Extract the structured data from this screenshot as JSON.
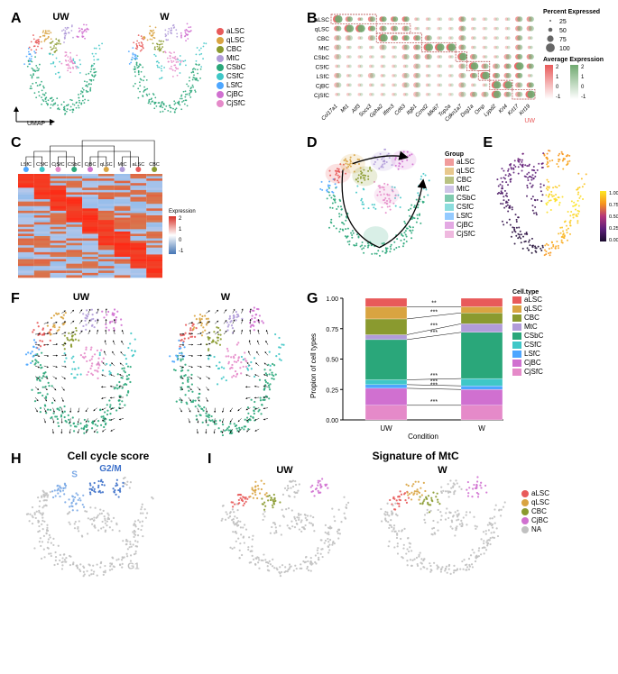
{
  "cell_types": {
    "aLSC": {
      "label": "aLSC",
      "color": "#e85a5a"
    },
    "qLSC": {
      "label": "qLSC",
      "color": "#d9a441"
    },
    "CBC": {
      "label": "CBC",
      "color": "#8a9a2f"
    },
    "MtC": {
      "label": "MtC",
      "color": "#b19cd9"
    },
    "CSbC": {
      "label": "CSbC",
      "color": "#2aa77a"
    },
    "CSfC": {
      "label": "CSfC",
      "color": "#3fc7c7"
    },
    "LSfC": {
      "label": "LSfC",
      "color": "#4da6ff"
    },
    "CjBC": {
      "label": "CjBC",
      "color": "#d070d0"
    },
    "CjSfC": {
      "label": "CjSfC",
      "color": "#e58ac9"
    }
  },
  "umap_axes": {
    "x": "UMAP_1",
    "y": "UMAP_2"
  },
  "panelA": {
    "title_left": "UW",
    "title_right": "W"
  },
  "panelB": {
    "genes": [
      "Col17a1",
      "Mt1",
      "Atf3",
      "Socs3",
      "Gpha2",
      "Ifitm3",
      "Cd63",
      "Itgb1",
      "Ccnd2",
      "Mki67",
      "Top2a",
      "Cdkn1a7",
      "Dsg1a",
      "Omp",
      "Lypd2",
      "Krt4",
      "Krt17",
      "Krt19"
    ],
    "rows": [
      "aLSC",
      "qLSC",
      "CBC",
      "MtC",
      "CSbC",
      "CSfC",
      "LSfC",
      "CjBC",
      "CjSfC"
    ],
    "legend_percent": {
      "title": "Percent Expressed",
      "vals": [
        25,
        50,
        75,
        100
      ]
    },
    "legend_avg": {
      "title": "Average Expression",
      "vals": [
        2,
        1,
        0,
        -1
      ]
    },
    "cond_colors": {
      "UW": "#e85a5a",
      "W": "#6fa96f"
    },
    "box_color": "#b04040",
    "grid": [
      [
        [
          3,
          1.8,
          2,
          1.2,
          1,
          1.0,
          2,
          1.3,
          2,
          1.6,
          2,
          1.4,
          2,
          1.5,
          1,
          0.4,
          1,
          0.3,
          1,
          0.2,
          1,
          0.2,
          2,
          1.1,
          1,
          0.3,
          1,
          0.2,
          1,
          0.2,
          1,
          0.3,
          2,
          1.0,
          2,
          1.0
        ],
        [
          3,
          1.9,
          2,
          1.4,
          1,
          0.8,
          2,
          1.2,
          2,
          1.6,
          2,
          1.5,
          2,
          1.4,
          1,
          0.3,
          1,
          0.3,
          1,
          0.2,
          1,
          0.2,
          2,
          1.0,
          1,
          0.3,
          1,
          0.2,
          1,
          0.2,
          1,
          0.3,
          2,
          1.0,
          2,
          1.0
        ]
      ],
      [
        [
          2,
          1.3,
          3,
          1.7,
          3,
          1.8,
          2,
          1.5,
          2,
          1.2,
          2,
          1.1,
          2,
          1.0,
          1,
          0.3,
          1,
          0.2,
          1,
          0.1,
          1,
          0.1,
          2,
          0.9,
          1,
          0.2,
          1,
          0.1,
          1,
          0.2,
          1,
          0.2,
          2,
          0.9,
          2,
          0.8
        ],
        [
          2,
          1.4,
          3,
          1.8,
          3,
          1.9,
          2,
          1.6,
          2,
          1.3,
          2,
          1.2,
          2,
          1.1,
          1,
          0.3,
          1,
          0.2,
          1,
          0.1,
          1,
          0.1,
          2,
          0.9,
          1,
          0.2,
          1,
          0.1,
          1,
          0.2,
          1,
          0.2,
          2,
          0.9,
          2,
          0.8
        ]
      ],
      [
        [
          2,
          0.6,
          2,
          0.5,
          1,
          0.3,
          2,
          0.7,
          3,
          1.8,
          2,
          1.5,
          2,
          1.4,
          2,
          1.3,
          2,
          1.0,
          1,
          0.2,
          1,
          0.2,
          2,
          0.8,
          1,
          0.3,
          1,
          0.2,
          1,
          0.2,
          1,
          0.3,
          2,
          1.0,
          1,
          0.4
        ],
        [
          2,
          0.6,
          2,
          0.5,
          1,
          0.3,
          2,
          0.7,
          3,
          1.9,
          2,
          1.6,
          2,
          1.5,
          2,
          1.3,
          2,
          1.0,
          1,
          0.2,
          1,
          0.2,
          2,
          0.8,
          1,
          0.3,
          1,
          0.2,
          1,
          0.2,
          1,
          0.3,
          2,
          1.0,
          1,
          0.4
        ]
      ],
      [
        [
          2,
          0.5,
          1,
          0.3,
          1,
          0.2,
          1,
          0.3,
          2,
          0.6,
          1,
          0.3,
          2,
          0.8,
          2,
          1.1,
          3,
          1.7,
          3,
          1.8,
          3,
          1.8,
          2,
          1.0,
          1,
          0.3,
          1,
          0.2,
          1,
          0.2,
          1,
          0.2,
          2,
          0.9,
          1,
          0.4
        ],
        [
          2,
          0.5,
          1,
          0.3,
          1,
          0.2,
          1,
          0.3,
          2,
          0.6,
          1,
          0.3,
          2,
          0.8,
          2,
          1.1,
          3,
          1.8,
          3,
          1.9,
          3,
          1.9,
          2,
          1.0,
          1,
          0.3,
          1,
          0.2,
          1,
          0.2,
          1,
          0.2,
          2,
          0.9,
          1,
          0.4
        ]
      ],
      [
        [
          2,
          0.4,
          1,
          0.2,
          1,
          0.2,
          1,
          0.2,
          1,
          0.3,
          1,
          0.2,
          2,
          0.6,
          2,
          0.8,
          2,
          0.9,
          1,
          0.3,
          1,
          0.3,
          3,
          1.8,
          2,
          1.0,
          1,
          0.3,
          1,
          0.3,
          2,
          0.8,
          2,
          1.3,
          2,
          1.1
        ],
        [
          2,
          0.4,
          1,
          0.2,
          1,
          0.2,
          1,
          0.2,
          1,
          0.3,
          1,
          0.2,
          2,
          0.6,
          2,
          0.8,
          2,
          0.9,
          1,
          0.3,
          1,
          0.3,
          3,
          1.9,
          2,
          1.0,
          1,
          0.3,
          1,
          0.3,
          2,
          0.8,
          2,
          1.3,
          2,
          1.1
        ]
      ],
      [
        [
          1,
          0.3,
          1,
          0.2,
          1,
          0.2,
          1,
          0.2,
          1,
          0.2,
          1,
          0.2,
          1,
          0.3,
          2,
          0.5,
          1,
          0.3,
          1,
          0.2,
          1,
          0.2,
          2,
          0.7,
          3,
          1.8,
          2,
          1.0,
          2,
          0.8,
          2,
          1.2,
          3,
          1.9,
          2,
          1.3
        ],
        [
          1,
          0.3,
          1,
          0.2,
          1,
          0.2,
          1,
          0.2,
          1,
          0.2,
          1,
          0.2,
          1,
          0.3,
          2,
          0.5,
          1,
          0.3,
          1,
          0.2,
          1,
          0.2,
          2,
          0.7,
          3,
          1.9,
          2,
          1.0,
          2,
          0.8,
          2,
          1.2,
          3,
          1.9,
          2,
          1.3
        ]
      ],
      [
        [
          2,
          0.6,
          1,
          0.3,
          1,
          0.2,
          2,
          0.5,
          1,
          0.3,
          1,
          0.2,
          2,
          0.5,
          2,
          0.6,
          1,
          0.3,
          1,
          0.2,
          1,
          0.2,
          2,
          0.6,
          2,
          1.3,
          3,
          1.8,
          2,
          1.3,
          2,
          1.0,
          2,
          1.4,
          1,
          0.4
        ],
        [
          2,
          0.6,
          1,
          0.3,
          1,
          0.2,
          2,
          0.5,
          1,
          0.3,
          1,
          0.2,
          2,
          0.5,
          2,
          0.6,
          1,
          0.3,
          1,
          0.2,
          1,
          0.2,
          2,
          0.6,
          2,
          1.3,
          3,
          1.9,
          2,
          1.3,
          2,
          1.0,
          2,
          1.4,
          1,
          0.4
        ]
      ],
      [
        [
          2,
          0.5,
          1,
          0.3,
          1,
          0.2,
          1,
          0.3,
          1,
          0.2,
          1,
          0.2,
          2,
          0.5,
          2,
          0.6,
          1,
          0.3,
          1,
          0.2,
          1,
          0.2,
          2,
          0.6,
          1,
          0.3,
          1,
          0.3,
          3,
          1.8,
          3,
          1.7,
          2,
          0.8,
          2,
          1.4
        ],
        [
          2,
          0.5,
          1,
          0.3,
          1,
          0.2,
          1,
          0.3,
          1,
          0.2,
          1,
          0.2,
          2,
          0.5,
          2,
          0.6,
          1,
          0.3,
          1,
          0.2,
          1,
          0.2,
          2,
          0.6,
          1,
          0.3,
          1,
          0.3,
          3,
          1.9,
          3,
          1.8,
          2,
          0.8,
          2,
          1.4
        ]
      ],
      [
        [
          1,
          0.3,
          1,
          0.2,
          1,
          0.2,
          1,
          0.2,
          1,
          0.2,
          1,
          0.2,
          1,
          0.3,
          2,
          0.4,
          1,
          0.2,
          1,
          0.1,
          1,
          0.1,
          2,
          0.5,
          2,
          0.9,
          2,
          0.7,
          3,
          1.7,
          2,
          1.0,
          2,
          0.8,
          3,
          1.8
        ],
        [
          1,
          0.3,
          1,
          0.2,
          1,
          0.2,
          1,
          0.2,
          1,
          0.2,
          1,
          0.2,
          1,
          0.3,
          2,
          0.4,
          1,
          0.2,
          1,
          0.1,
          1,
          0.1,
          2,
          0.5,
          2,
          0.9,
          2,
          0.7,
          3,
          1.8,
          2,
          1.0,
          2,
          0.8,
          3,
          1.9
        ]
      ]
    ]
  },
  "panelC": {
    "dendro_order": [
      "LSfC",
      "CSfC",
      "CjSfC",
      "CSbC",
      "CjBC",
      "qLSC",
      "MtC",
      "aLSC",
      "CBC"
    ],
    "expr_legend": {
      "title": "Expression",
      "max_color": "#d73027",
      "mid_color": "#ffffff",
      "min_color": "#4575b4",
      "vals": [
        2,
        1,
        0,
        -1
      ]
    }
  },
  "panelD": {
    "legend_title": "Group",
    "order": [
      "aLSC",
      "qLSC",
      "CBC",
      "MtC",
      "CSbC",
      "CSfC",
      "LSfC",
      "CjBC",
      "CjSfC"
    ]
  },
  "panelE": {
    "gradient_title": "",
    "vals": [
      1.0,
      0.75,
      0.5,
      0.25,
      0.0
    ],
    "colors": [
      "#fde725",
      "#f7941d",
      "#b5367a",
      "#5e1f7b",
      "#1a0b2e"
    ]
  },
  "panelF": {
    "title_left": "UW",
    "title_right": "W"
  },
  "panelG": {
    "y_label": "Propion of cell types",
    "x_label": "Condition",
    "legend_title": "Cell.type",
    "cats": [
      "UW",
      "W"
    ],
    "yticks": [
      0.0,
      0.25,
      0.5,
      0.75,
      1.0
    ],
    "stack": {
      "UW": {
        "aLSC": 0.07,
        "qLSC": 0.1,
        "CBC": 0.13,
        "MtC": 0.04,
        "CSbC": 0.33,
        "CSfC": 0.04,
        "LSfC": 0.03,
        "CjBC": 0.14,
        "CjSfC": 0.12
      },
      "W": {
        "aLSC": 0.07,
        "qLSC": 0.05,
        "CBC": 0.09,
        "MtC": 0.07,
        "CSbC": 0.38,
        "CSfC": 0.06,
        "LSfC": 0.03,
        "CjBC": 0.13,
        "CjSfC": 0.12
      }
    },
    "sig": [
      "**",
      "***",
      "***",
      "***",
      "***",
      "***",
      "***",
      "***"
    ]
  },
  "panelH": {
    "title": "Cell cycle score",
    "labels": {
      "S": "S",
      "G2M": "G2/M",
      "G1": "G1"
    },
    "colors": {
      "S": "#7aa8e6",
      "G2M": "#3b6fc9",
      "G1": "#c0c0c0"
    }
  },
  "panelI": {
    "title": "Signature of MtC",
    "title_left": "UW",
    "title_right": "W",
    "legend_order": [
      "aLSC",
      "qLSC",
      "CBC",
      "CjBC",
      "NA"
    ],
    "NA_color": "#c0c0c0"
  },
  "umap_pts": [
    [
      -3.5,
      6.5,
      "aLSC"
    ],
    [
      -3.3,
      6.7,
      "aLSC"
    ],
    [
      -3.7,
      6.3,
      "aLSC"
    ],
    [
      -3.1,
      6.9,
      "aLSC"
    ],
    [
      -3.6,
      6.1,
      "aLSC"
    ],
    [
      -3.4,
      7.0,
      "aLSC"
    ],
    [
      -3.2,
      6.4,
      "aLSC"
    ],
    [
      -3.8,
      6.6,
      "aLSC"
    ],
    [
      -2.3,
      7.3,
      "qLSC"
    ],
    [
      -2.1,
      7.5,
      "qLSC"
    ],
    [
      -2.5,
      7.1,
      "qLSC"
    ],
    [
      -2.0,
      7.7,
      "qLSC"
    ],
    [
      -2.4,
      6.9,
      "qLSC"
    ],
    [
      -2.2,
      7.8,
      "qLSC"
    ],
    [
      -1.9,
      7.2,
      "qLSC"
    ],
    [
      -2.6,
      7.4,
      "qLSC"
    ],
    [
      -1.3,
      6.3,
      "CBC"
    ],
    [
      -1.1,
      6.5,
      "CBC"
    ],
    [
      -1.5,
      6.1,
      "CBC"
    ],
    [
      -1.0,
      6.7,
      "CBC"
    ],
    [
      -1.4,
      5.9,
      "CBC"
    ],
    [
      -1.2,
      6.8,
      "CBC"
    ],
    [
      -0.9,
      6.2,
      "CBC"
    ],
    [
      -1.6,
      6.4,
      "CBC"
    ],
    [
      0.2,
      7.5,
      "MtC"
    ],
    [
      0.4,
      7.7,
      "MtC"
    ],
    [
      0.0,
      7.3,
      "MtC"
    ],
    [
      0.5,
      7.9,
      "MtC"
    ],
    [
      0.1,
      7.1,
      "MtC"
    ],
    [
      0.3,
      8.0,
      "MtC"
    ],
    [
      0.6,
      7.4,
      "MtC"
    ],
    [
      -0.1,
      7.6,
      "MtC"
    ],
    [
      2.0,
      7.6,
      "CjBC"
    ],
    [
      2.2,
      7.8,
      "CjBC"
    ],
    [
      1.8,
      7.4,
      "CjBC"
    ],
    [
      2.3,
      8.0,
      "CjBC"
    ],
    [
      1.9,
      7.2,
      "CjBC"
    ],
    [
      2.1,
      8.1,
      "CjBC"
    ],
    [
      2.4,
      7.5,
      "CjBC"
    ],
    [
      1.7,
      7.7,
      "CjBC"
    ],
    [
      -4.0,
      4.5,
      "CSbC"
    ],
    [
      -3.5,
      3.5,
      "CSbC"
    ],
    [
      -3.8,
      2.5,
      "CSbC"
    ],
    [
      -3.2,
      1.8,
      "CSbC"
    ],
    [
      -2.5,
      1.2,
      "CSbC"
    ],
    [
      -1.8,
      0.8,
      "CSbC"
    ],
    [
      -1.0,
      0.5,
      "CSbC"
    ],
    [
      -0.2,
      0.3,
      "CSbC"
    ],
    [
      0.5,
      0.4,
      "CSbC"
    ],
    [
      1.2,
      0.7,
      "CSbC"
    ],
    [
      1.8,
      1.1,
      "CSbC"
    ],
    [
      2.3,
      1.6,
      "CSbC"
    ],
    [
      2.7,
      2.2,
      "CSbC"
    ],
    [
      3.0,
      2.9,
      "CSbC"
    ],
    [
      3.2,
      3.6,
      "CSbC"
    ],
    [
      3.3,
      4.3,
      "CSbC"
    ],
    [
      -3.6,
      4.0,
      "CSbC"
    ],
    [
      -3.0,
      3.0,
      "CSbC"
    ],
    [
      -2.2,
      1.5,
      "CSbC"
    ],
    [
      -1.3,
      1.0,
      "CSbC"
    ],
    [
      -0.5,
      0.6,
      "CSbC"
    ],
    [
      0.3,
      0.5,
      "CSbC"
    ],
    [
      1.0,
      0.8,
      "CSbC"
    ],
    [
      1.6,
      1.3,
      "CSbC"
    ],
    [
      2.1,
      1.9,
      "CSbC"
    ],
    [
      2.5,
      2.6,
      "CSbC"
    ],
    [
      2.8,
      3.3,
      "CSbC"
    ],
    [
      3.0,
      4.0,
      "CSbC"
    ],
    [
      -3.9,
      5.0,
      "CSbC"
    ],
    [
      -3.4,
      4.2,
      "CSbC"
    ],
    [
      -2.8,
      2.2,
      "CSbC"
    ],
    [
      -2.0,
      1.4,
      "CSbC"
    ],
    [
      -1.5,
      5.2,
      "CSfC"
    ],
    [
      -1.3,
      4.8,
      "CSfC"
    ],
    [
      -1.1,
      4.4,
      "CSfC"
    ],
    [
      -0.9,
      4.0,
      "CSfC"
    ],
    [
      -0.7,
      3.6,
      "CSfC"
    ],
    [
      1.3,
      5.0,
      "CSfC"
    ],
    [
      1.5,
      4.6,
      "CSfC"
    ],
    [
      1.7,
      4.2,
      "CSfC"
    ],
    [
      3.5,
      5.3,
      "CSfC"
    ],
    [
      3.7,
      5.8,
      "CSfC"
    ],
    [
      3.9,
      6.3,
      "CSfC"
    ],
    [
      3.6,
      4.8,
      "CSfC"
    ],
    [
      -4.3,
      5.6,
      "LSfC"
    ],
    [
      -4.1,
      5.2,
      "LSfC"
    ],
    [
      -3.9,
      5.8,
      "LSfC"
    ],
    [
      -4.4,
      5.0,
      "LSfC"
    ],
    [
      -4.0,
      5.4,
      "LSfC"
    ],
    [
      -0.2,
      5.4,
      "CjSfC"
    ],
    [
      0.0,
      5.0,
      "CjSfC"
    ],
    [
      0.2,
      4.6,
      "CjSfC"
    ],
    [
      0.4,
      4.2,
      "CjSfC"
    ],
    [
      0.6,
      3.8,
      "CjSfC"
    ],
    [
      0.8,
      4.4,
      "CjSfC"
    ],
    [
      1.0,
      4.8,
      "CjSfC"
    ],
    [
      1.1,
      5.2,
      "CjSfC"
    ],
    [
      0.3,
      5.6,
      "CjSfC"
    ],
    [
      0.5,
      5.2,
      "CjSfC"
    ],
    [
      0.7,
      4.8,
      "CjSfC"
    ],
    [
      0.9,
      4.4,
      "CjSfC"
    ]
  ]
}
